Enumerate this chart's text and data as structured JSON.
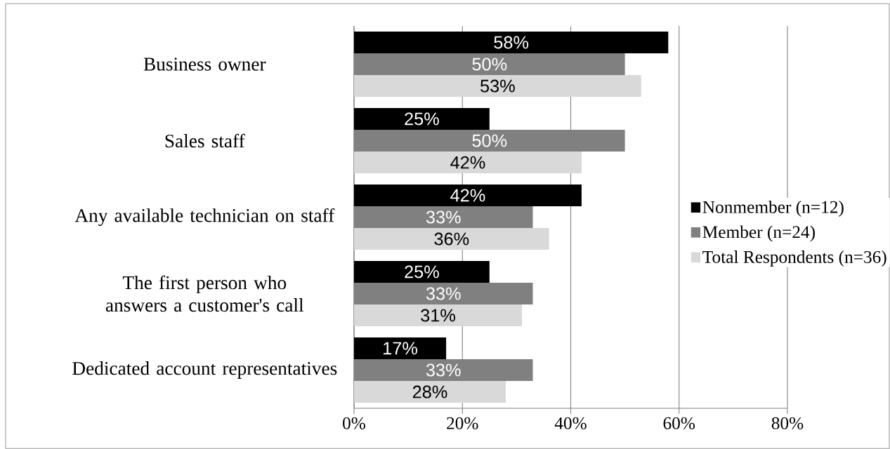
{
  "chart_data": {
    "type": "bar",
    "orientation": "horizontal",
    "categories": [
      "Business owner",
      "Sales staff",
      "Any available technician on staff",
      "The first person who answers a customer's call",
      "Dedicated account representatives"
    ],
    "series": [
      {
        "name": "Nonmember (n=12)",
        "color": "#000000",
        "values": [
          58,
          25,
          42,
          25,
          17
        ],
        "value_labels": [
          "58%",
          "25%",
          "42%",
          "25%",
          "17%"
        ]
      },
      {
        "name": "Member (n=24)",
        "color": "#808080",
        "values": [
          50,
          50,
          33,
          33,
          33
        ],
        "value_labels": [
          "50%",
          "50%",
          "33%",
          "33%",
          "33%"
        ]
      },
      {
        "name": "Total Respondents (n=36)",
        "color": "#d9d9d9",
        "values": [
          53,
          42,
          36,
          31,
          28
        ],
        "value_labels": [
          "53%",
          "42%",
          "36%",
          "31%",
          "28%"
        ]
      }
    ],
    "xlim": [
      0,
      80
    ],
    "xticks": [
      {
        "value": 0,
        "label": "0%"
      },
      {
        "value": 20,
        "label": "20%"
      },
      {
        "value": 40,
        "label": "40%"
      },
      {
        "value": 60,
        "label": "60%"
      },
      {
        "value": 80,
        "label": "80%"
      }
    ],
    "grid": "x",
    "legend": "right"
  }
}
